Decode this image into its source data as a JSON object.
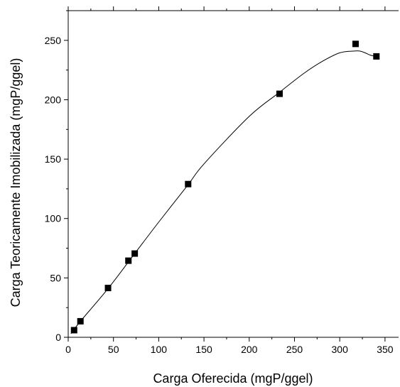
{
  "chart_data": {
    "type": "scatter",
    "title": "",
    "xlabel": "Carga Oferecida (mgP/ggel)",
    "ylabel": "Carga Teoricamente Imobilizada (mgP/ggel)",
    "xlim": [
      0,
      365
    ],
    "ylim": [
      0,
      275
    ],
    "x_ticks": [
      0,
      50,
      100,
      150,
      200,
      250,
      300,
      350
    ],
    "x_tick_labels": [
      "0",
      "50",
      "100",
      "150",
      "200",
      "250",
      "300",
      "350"
    ],
    "y_ticks": [
      0,
      50,
      100,
      150,
      200,
      250
    ],
    "y_tick_labels": [
      "0",
      "50",
      "100",
      "150",
      "200",
      "250"
    ],
    "grid": false,
    "series": [
      {
        "kind": "points",
        "marker": "square",
        "color": "#000000",
        "x": [
          6.5,
          13.5,
          44,
          66.5,
          73.5,
          132.5,
          233.5,
          317.5,
          340.5
        ],
        "y": [
          6,
          13.5,
          41.5,
          64.5,
          70.5,
          129,
          205,
          247,
          236.5
        ]
      },
      {
        "kind": "fit-curve",
        "color": "#000000",
        "x": [
          3,
          13,
          44,
          73,
          100,
          132,
          150,
          200,
          233,
          260,
          280,
          300,
          316,
          322,
          328,
          334,
          340
        ],
        "y": [
          3,
          13,
          41,
          70,
          97,
          128,
          146,
          186,
          206,
          222,
          232,
          239.5,
          241,
          241,
          239.5,
          237.5,
          236.5
        ]
      }
    ]
  }
}
